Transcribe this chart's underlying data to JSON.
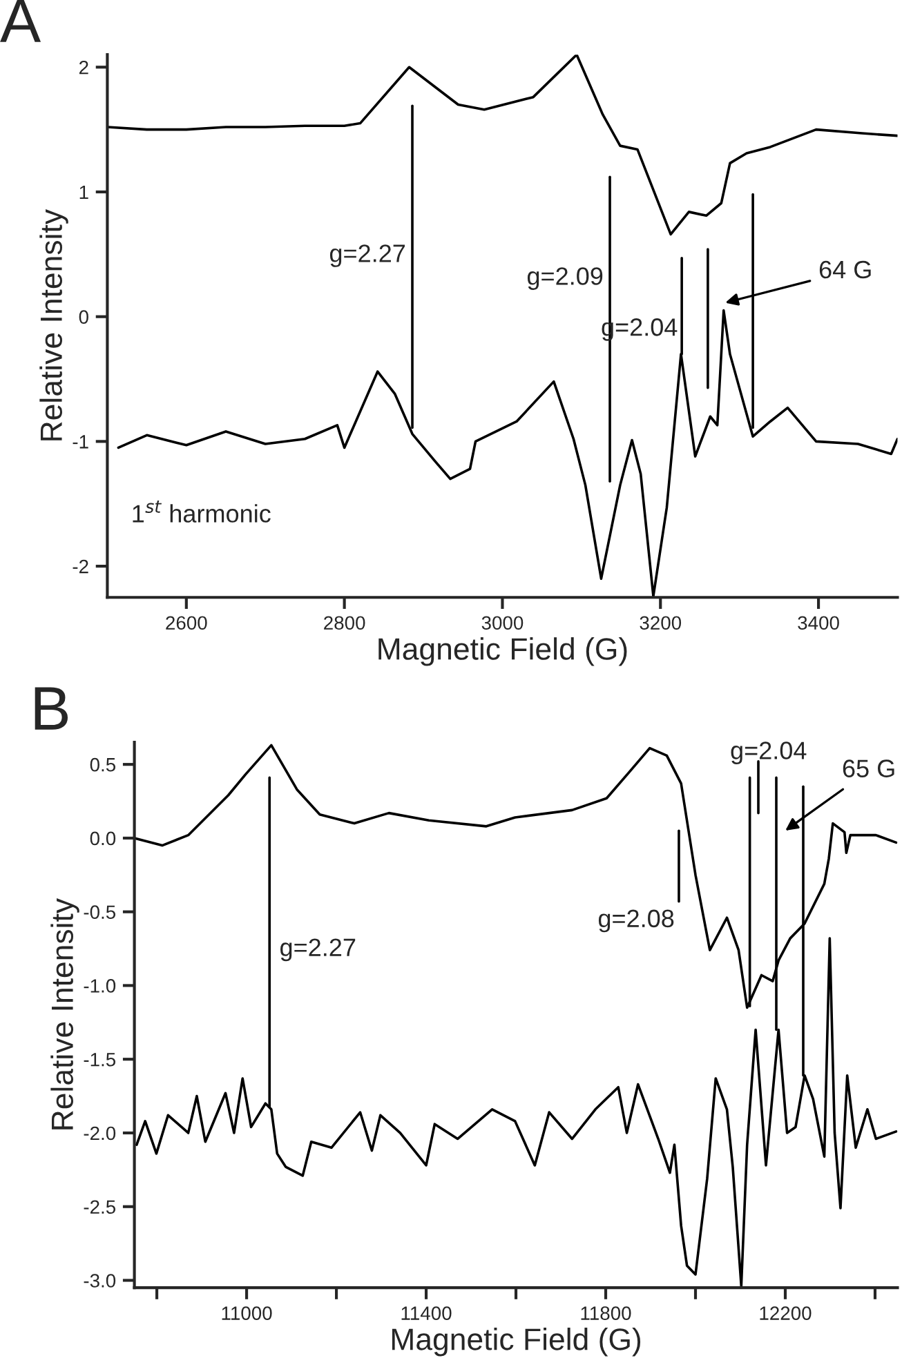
{
  "chart_data": [
    {
      "type": "line",
      "title": "A",
      "xlabel": "Magnetic Field (G)",
      "ylabel": "Relative Intensity",
      "xlim": [
        2500,
        3500
      ],
      "ylim": [
        -2.25,
        2.1
      ],
      "xticks": [
        2600,
        2800,
        3000,
        3200,
        3400
      ],
      "yticks": [
        -2,
        -1,
        0,
        1,
        2
      ],
      "grid": false,
      "legend": false,
      "marker": "none",
      "line_style": "solid",
      "series": [
        {
          "color": "#000000",
          "x": [
            2500,
            2550,
            2600,
            2650,
            2700,
            2750,
            2800,
            2820,
            2882,
            2944,
            2977,
            3039,
            3094,
            3127,
            3149,
            3171,
            3213,
            3236,
            3258,
            3277,
            3288,
            3309,
            3339,
            3397,
            3455,
            3500
          ],
          "values": [
            1.52,
            1.5,
            1.5,
            1.52,
            1.52,
            1.53,
            1.53,
            1.55,
            2.0,
            1.7,
            1.66,
            1.76,
            2.1,
            1.62,
            1.37,
            1.34,
            0.66,
            0.84,
            0.81,
            0.91,
            1.23,
            1.31,
            1.36,
            1.5,
            1.47,
            1.45
          ]
        },
        {
          "color": "#000000",
          "x": [
            2514,
            2550,
            2600,
            2650,
            2700,
            2750,
            2791,
            2800,
            2842,
            2864,
            2886,
            2915,
            2934,
            2959,
            2966,
            3018,
            3065,
            3090,
            3105,
            3125,
            3149,
            3164,
            3175,
            3191,
            3208,
            3226,
            3244,
            3263,
            3272,
            3280,
            3288,
            3317,
            3339,
            3361,
            3397,
            3450,
            3492,
            3500
          ],
          "values": [
            -1.05,
            -0.95,
            -1.03,
            -0.92,
            -1.02,
            -0.98,
            -0.87,
            -1.05,
            -0.44,
            -0.62,
            -0.94,
            -1.16,
            -1.3,
            -1.22,
            -1.0,
            -0.84,
            -0.52,
            -0.98,
            -1.35,
            -2.1,
            -1.35,
            -0.99,
            -1.26,
            -2.24,
            -1.53,
            -0.3,
            -1.12,
            -0.8,
            -0.87,
            0.05,
            -0.3,
            -0.96,
            -0.84,
            -0.73,
            -1.0,
            -1.02,
            -1.1,
            -0.98
          ]
        },
        {
          "color": "#000000",
          "x": [
            2886,
            2886
          ],
          "values": [
            1.69,
            -0.89
          ]
        },
        {
          "color": "#000000",
          "x": [
            3136,
            3136
          ],
          "values": [
            1.12,
            -1.32
          ]
        },
        {
          "color": "#000000",
          "x": [
            3227,
            3227
          ],
          "values": [
            0.47,
            -0.3
          ]
        },
        {
          "color": "#000000",
          "x": [
            3260,
            3260
          ],
          "values": [
            0.54,
            -0.57
          ]
        },
        {
          "color": "#000000",
          "x": [
            3317,
            3317
          ],
          "values": [
            0.98,
            -0.89
          ]
        }
      ],
      "annotations": [
        "g=2.27",
        "g=2.09",
        "g=2.04",
        "64 G",
        "1$^{st}$ harmonic"
      ]
    },
    {
      "type": "line",
      "title": "B",
      "xlabel": "Magnetic Field (G)",
      "ylabel": "Relative Intensity",
      "xlim": [
        10750,
        12450
      ],
      "ylim": [
        -3.05,
        0.65
      ],
      "xticks": [
        {
          "value": 10800,
          "label": null
        },
        11000,
        {
          "value": 11200,
          "label": null
        },
        11400,
        {
          "value": 11600,
          "label": null
        },
        11800,
        {
          "value": 12000,
          "label": null
        },
        12200,
        {
          "value": 12400,
          "label": null
        }
      ],
      "yticks": [
        {
          "value": -3,
          "label": "-3.0"
        },
        -2.5,
        {
          "value": -2,
          "label": "-2.0"
        },
        -1.5,
        {
          "value": -1,
          "label": "-1.0"
        },
        -0.5,
        {
          "value": 0,
          "label": "0.0"
        },
        0.5
      ],
      "grid": false,
      "legend": false,
      "marker": "none",
      "line_style": "solid",
      "series": [
        {
          "color": "#000000",
          "x": [
            10750,
            10812,
            10870,
            10959,
            10997,
            11055,
            11112,
            11163,
            11240,
            11317,
            11406,
            11534,
            11598,
            11725,
            11802,
            11853,
            11898,
            11936,
            11968,
            12000,
            12032,
            12070,
            12096,
            12115,
            12147,
            12172,
            12185,
            12211,
            12243,
            12287,
            12297,
            12306,
            12332,
            12336,
            12345,
            12402,
            12447
          ],
          "values": [
            0.0,
            -0.05,
            0.02,
            0.29,
            0.43,
            0.63,
            0.33,
            0.16,
            0.1,
            0.17,
            0.12,
            0.08,
            0.14,
            0.19,
            0.27,
            0.45,
            0.61,
            0.56,
            0.37,
            -0.25,
            -0.76,
            -0.54,
            -0.76,
            -1.15,
            -0.93,
            -0.97,
            -0.83,
            -0.68,
            -0.58,
            -0.31,
            -0.14,
            0.1,
            0.04,
            -0.1,
            0.02,
            0.02,
            -0.03
          ]
        },
        {
          "color": "#000000",
          "x": [
            10755,
            10774,
            10799,
            10825,
            10870,
            10889,
            10908,
            10953,
            10972,
            10991,
            11010,
            11042,
            11055,
            11068,
            11087,
            11125,
            11144,
            11189,
            11253,
            11279,
            11298,
            11342,
            11400,
            11419,
            11470,
            11547,
            11598,
            11642,
            11674,
            11725,
            11777,
            11828,
            11847,
            11872,
            11917,
            11943,
            11953,
            11968,
            11981,
            12000,
            12026,
            12045,
            12070,
            12083,
            12102,
            12115,
            12134,
            12157,
            12185,
            12204,
            12223,
            12243,
            12262,
            12287,
            12299,
            12310,
            12323,
            12338,
            12357,
            12383,
            12402,
            12447
          ],
          "values": [
            -2.08,
            -1.92,
            -2.14,
            -1.88,
            -2.0,
            -1.75,
            -2.06,
            -1.73,
            -2.0,
            -1.63,
            -1.96,
            -1.8,
            -1.84,
            -2.14,
            -2.23,
            -2.29,
            -2.06,
            -2.1,
            -1.86,
            -2.12,
            -1.88,
            -2.0,
            -2.22,
            -1.94,
            -2.04,
            -1.84,
            -1.92,
            -2.22,
            -1.86,
            -2.04,
            -1.84,
            -1.69,
            -2.0,
            -1.67,
            -2.04,
            -2.27,
            -2.08,
            -2.63,
            -2.9,
            -2.96,
            -2.31,
            -1.63,
            -1.84,
            -2.23,
            -3.04,
            -2.08,
            -1.3,
            -2.22,
            -1.3,
            -2.0,
            -1.96,
            -1.61,
            -1.77,
            -2.16,
            -0.68,
            -2.0,
            -2.51,
            -1.61,
            -2.1,
            -1.84,
            -2.04,
            -1.99
          ]
        },
        {
          "color": "#000000",
          "x": [
            11051,
            11051
          ],
          "values": [
            0.41,
            -1.82
          ]
        },
        {
          "color": "#000000",
          "x": [
            11963,
            11963
          ],
          "values": [
            0.05,
            -0.43
          ]
        },
        {
          "color": "#000000",
          "x": [
            12121,
            12121
          ],
          "values": [
            0.41,
            -1.14
          ]
        },
        {
          "color": "#000000",
          "x": [
            12140,
            12140
          ],
          "values": [
            0.52,
            0.17
          ]
        },
        {
          "color": "#000000",
          "x": [
            12180,
            12180
          ],
          "values": [
            0.41,
            -1.3
          ]
        },
        {
          "color": "#000000",
          "x": [
            12240,
            12240
          ],
          "values": [
            0.35,
            -1.61
          ]
        }
      ],
      "annotations": [
        "g=2.27",
        "g=2.08",
        "g=2.04",
        "65 G"
      ]
    }
  ]
}
